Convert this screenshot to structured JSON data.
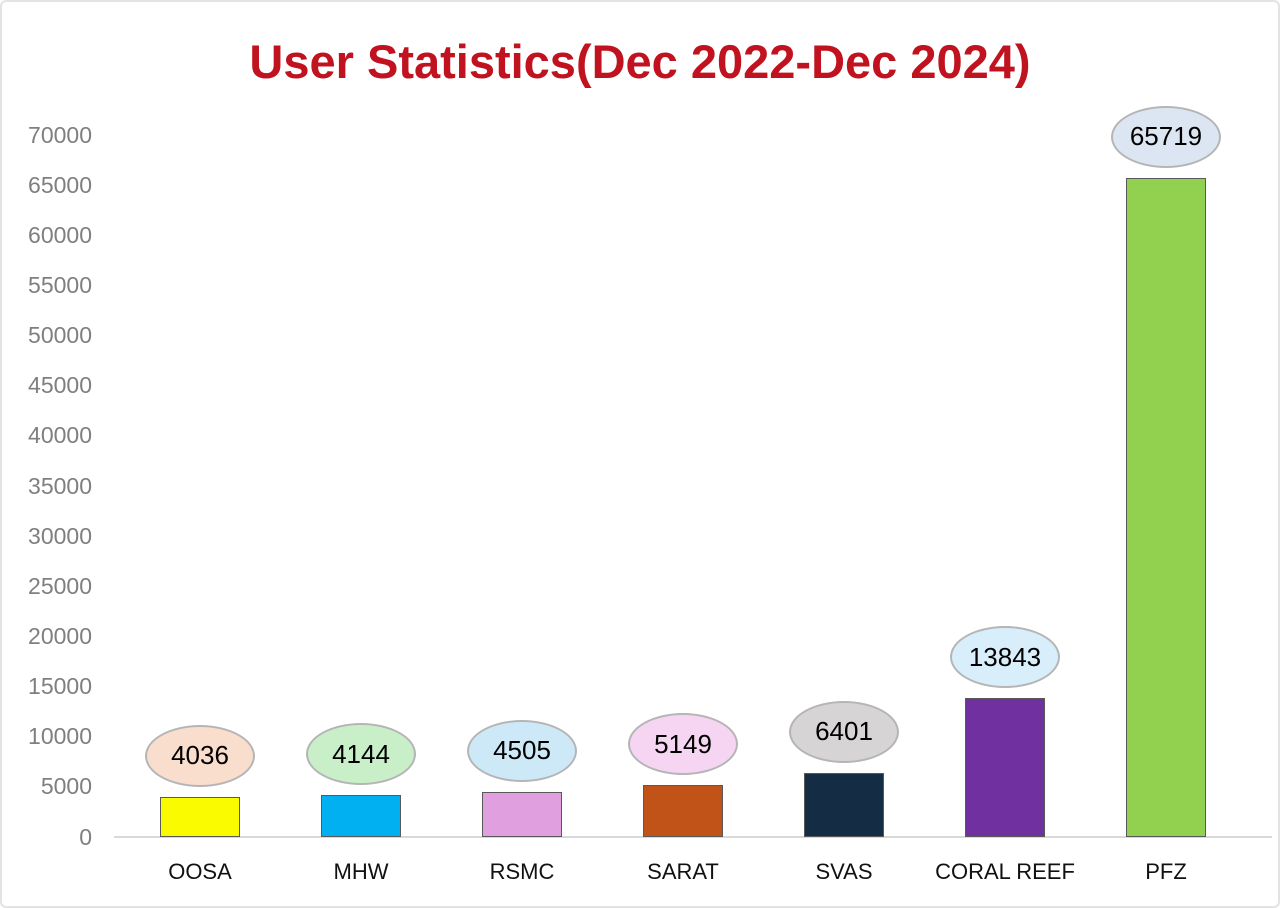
{
  "title": {
    "text": "User Statistics(Dec 2022-Dec 2024)",
    "color": "#c1121f"
  },
  "chart_data": {
    "type": "bar",
    "title": "User Statistics(Dec 2022-Dec 2024)",
    "categories": [
      "OOSA",
      "MHW",
      "RSMC",
      "SARAT",
      "SVAS",
      "CORAL REEF",
      "PFZ"
    ],
    "values": [
      4036,
      4144,
      4505,
      5149,
      6401,
      13843,
      65719
    ],
    "data_labels": [
      "4036",
      "4144",
      "4505",
      "5149",
      "6401",
      "13843",
      "65719"
    ],
    "bar_colors": [
      "#fbfb00",
      "#00b0f0",
      "#e09fdf",
      "#c25318",
      "#142c44",
      "#7030a0",
      "#92d050"
    ],
    "callout_fill_colors": [
      "#f9ddcd",
      "#c9efc9",
      "#cde9f8",
      "#f6d5f2",
      "#d6d4d4",
      "#d8eefa",
      "#dce6f2"
    ],
    "xlabel": "",
    "ylabel": "",
    "ylim": [
      0,
      70000
    ],
    "yticks": [
      0,
      5000,
      10000,
      15000,
      20000,
      25000,
      30000,
      35000,
      40000,
      45000,
      50000,
      55000,
      60000,
      65000,
      70000
    ],
    "grid": false,
    "legend": false,
    "annotation_style": "ellipse-callout-above-bar"
  },
  "style": {
    "title_color": "#c1121f",
    "tick_label_color": "#7f7f7f",
    "category_label_color": "#111111",
    "axis_line_color": "#d9d9d9",
    "bar_border_color": "#595959",
    "callout_border_color": "#b5b5b5",
    "background_color": "#ffffff"
  }
}
